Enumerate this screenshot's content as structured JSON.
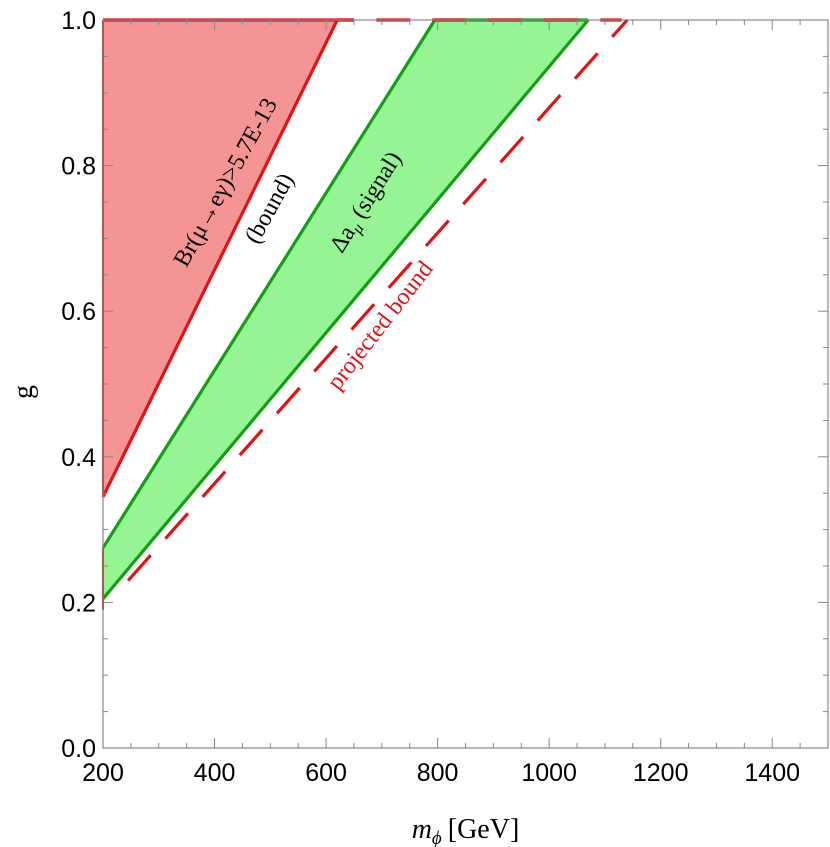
{
  "chart_data": {
    "type": "area",
    "xlabel": "[GeV]",
    "xlabel_symbol": "m",
    "xlabel_subscript": "ϕ",
    "ylabel": "g",
    "xlim": [
      200,
      1500
    ],
    "ylim": [
      0,
      1
    ],
    "x_ticks": [
      200,
      400,
      600,
      800,
      1000,
      1200,
      1400
    ],
    "x_tick_labels": [
      "200",
      "400",
      "600",
      "800",
      "1000",
      "1200",
      "1400"
    ],
    "y_ticks": [
      0.0,
      0.2,
      0.4,
      0.6,
      0.8,
      1.0
    ],
    "y_tick_labels": [
      "0.0",
      "0.2",
      "0.4",
      "0.6",
      "0.8",
      "1.0"
    ],
    "grid": false,
    "series": [
      {
        "name": "Br(μ→eγ)>5.7E-13 (bound)",
        "kind": "excluded-region",
        "fill": "#f59494",
        "edge": "#e01414",
        "boundary": [
          [
            200,
            0.345
          ],
          [
            620,
            1.0
          ]
        ]
      },
      {
        "name": "Δaμ (signal)",
        "kind": "band",
        "fill": "#95f595",
        "edge": "#12a012",
        "upper_boundary": [
          [
            200,
            0.275
          ],
          [
            795,
            1.0
          ]
        ],
        "lower_boundary": [
          [
            200,
            0.205
          ],
          [
            1070,
            1.0
          ]
        ]
      },
      {
        "name": "projected bound",
        "kind": "dashed-line",
        "color": "#e01414",
        "points": [
          [
            245,
            0.23
          ],
          [
            1140,
            1.0
          ]
        ]
      }
    ],
    "annotations": [
      {
        "id": "br",
        "text": "Br(μ→eγ)>5.7E-13",
        "color": "#000000"
      },
      {
        "id": "br_bound",
        "text": "(bound)",
        "color": "#000000"
      },
      {
        "id": "damu",
        "text": "Δa",
        "sub": "μ",
        "rest": " (signal)",
        "color": "#000000"
      },
      {
        "id": "proj",
        "text": "projected bound",
        "color": "#e01414"
      }
    ]
  }
}
